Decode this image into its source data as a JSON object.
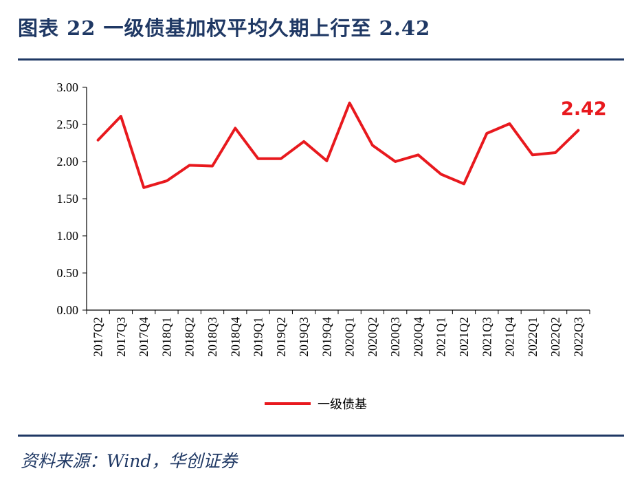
{
  "title": "图表 22  一级债基加权平均久期上行至 2.42",
  "source": "资料来源：Wind，华创证券",
  "chart_data": {
    "type": "line",
    "categories": [
      "2017Q2",
      "2017Q3",
      "2017Q4",
      "2018Q1",
      "2018Q2",
      "2018Q3",
      "2018Q4",
      "2019Q1",
      "2019Q2",
      "2019Q3",
      "2019Q4",
      "2020Q1",
      "2020Q2",
      "2020Q3",
      "2020Q4",
      "2021Q1",
      "2021Q2",
      "2021Q3",
      "2021Q4",
      "2022Q1",
      "2022Q2",
      "2022Q3"
    ],
    "series": [
      {
        "name": "一级债基",
        "color": "#e8191e",
        "values": [
          2.29,
          2.61,
          1.65,
          1.74,
          1.95,
          1.94,
          2.45,
          2.04,
          2.04,
          2.27,
          2.01,
          2.79,
          2.22,
          2.0,
          2.09,
          1.83,
          1.7,
          2.38,
          2.51,
          2.09,
          2.12,
          2.42
        ]
      }
    ],
    "yticks": [
      "0.00",
      "0.50",
      "1.00",
      "1.50",
      "2.00",
      "2.50",
      "3.00"
    ],
    "ylim": [
      0,
      3
    ],
    "annotation": {
      "text": "2.42",
      "category": "2022Q3"
    },
    "legend_position": "bottom",
    "grid": false
  }
}
